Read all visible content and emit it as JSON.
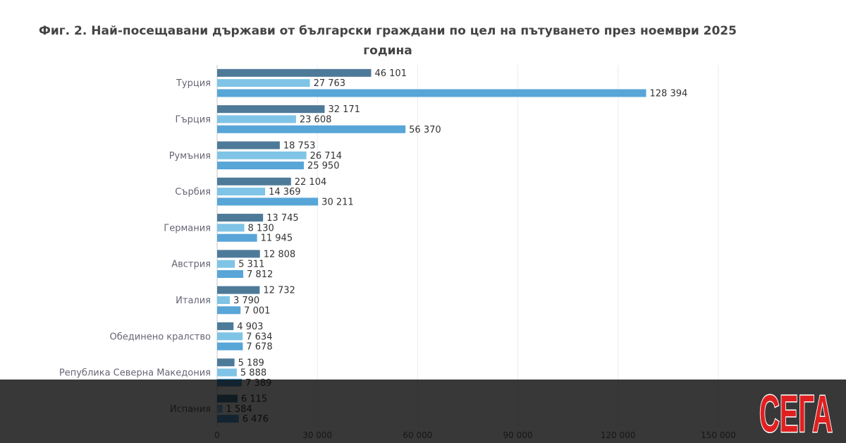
{
  "chart_data": {
    "type": "bar",
    "orientation": "horizontal",
    "title_line1": "Фиг. 2. Най-посещавани държави от български граждани по цел на пътуването през ноември 2025",
    "title_line2": "година",
    "categories": [
      "Турция",
      "Гърция",
      "Румъния",
      "Сърбия",
      "Германия",
      "Австрия",
      "Италия",
      "Обединено кралство",
      "Република Северна Македония",
      "Испания"
    ],
    "series": [
      {
        "name": "series-1",
        "color": "#4e7a99",
        "values": [
          46101,
          32171,
          18753,
          22104,
          13745,
          12808,
          12732,
          4903,
          5189,
          6115
        ]
      },
      {
        "name": "series-2",
        "color": "#7fc4e6",
        "values": [
          27763,
          23608,
          26714,
          14369,
          8130,
          5311,
          3790,
          7634,
          5888,
          1584
        ]
      },
      {
        "name": "series-3",
        "color": "#58a5d8",
        "values": [
          128394,
          56370,
          25950,
          30211,
          11945,
          7812,
          7001,
          7678,
          7389,
          6476
        ]
      }
    ],
    "value_labels": [
      [
        "46 101",
        "32 171",
        "18 753",
        "22 104",
        "13 745",
        "12 808",
        "12 732",
        "4 903",
        "5 189",
        "6 115"
      ],
      [
        "27 763",
        "23 608",
        "26 714",
        "14 369",
        "8 130",
        "5 311",
        "3 790",
        "7 634",
        "5 888",
        "1 584"
      ],
      [
        "128 394",
        "56 370",
        "25 950",
        "30 211",
        "11 945",
        "7 812",
        "7 001",
        "7 678",
        "7 389",
        "6 476"
      ]
    ],
    "xlim": [
      0,
      165000
    ],
    "x_ticks": [
      0,
      30000,
      60000,
      90000,
      120000,
      150000
    ],
    "x_tick_labels": [
      "0",
      "30 000",
      "60 000",
      "90 000",
      "120 000",
      "150 000"
    ],
    "grid": true
  },
  "watermark": {
    "logo_text": "СЕГА",
    "logo_color": "#e02020"
  }
}
